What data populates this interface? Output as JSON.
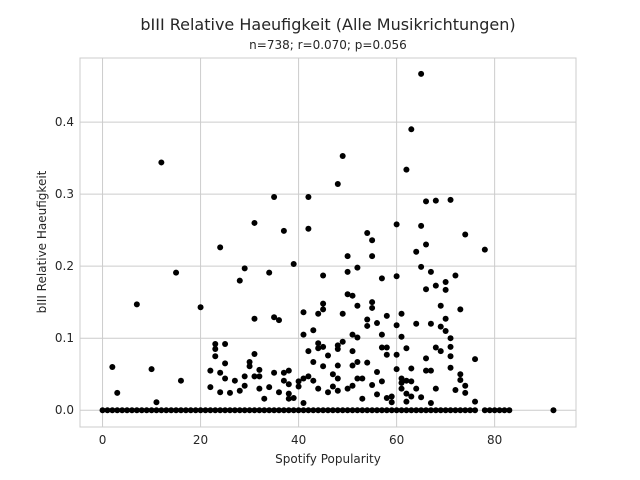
{
  "chart_data": {
    "type": "scatter",
    "title": "bIII Relative Haeufigkeit (Alle Musikrichtungen)",
    "subtitle": "n=738; r=0.070; p=0.056",
    "xlabel": "Spotify Popularity",
    "ylabel": "bIII Relative Haeufigkeit",
    "xlim": [
      -4.6,
      96.6
    ],
    "ylim": [
      -0.0233,
      0.489
    ],
    "xticks": [
      0,
      20,
      40,
      60,
      80
    ],
    "yticks": [
      0.0,
      0.1,
      0.2,
      0.3,
      0.4
    ],
    "xtick_labels": [
      "0",
      "20",
      "40",
      "60",
      "80"
    ],
    "ytick_labels": [
      "0.0",
      "0.1",
      "0.2",
      "0.3",
      "0.4"
    ],
    "grid": true,
    "marker_color": "#000000",
    "points": [
      [
        0,
        0
      ],
      [
        1,
        0
      ],
      [
        2,
        0
      ],
      [
        3,
        0
      ],
      [
        4,
        0
      ],
      [
        5,
        0
      ],
      [
        6,
        0
      ],
      [
        7,
        0
      ],
      [
        8,
        0
      ],
      [
        9,
        0
      ],
      [
        10,
        0
      ],
      [
        11,
        0
      ],
      [
        12,
        0
      ],
      [
        13,
        0
      ],
      [
        14,
        0
      ],
      [
        15,
        0
      ],
      [
        16,
        0
      ],
      [
        17,
        0
      ],
      [
        18,
        0
      ],
      [
        19,
        0
      ],
      [
        20,
        0
      ],
      [
        21,
        0
      ],
      [
        22,
        0
      ],
      [
        23,
        0
      ],
      [
        24,
        0
      ],
      [
        25,
        0
      ],
      [
        26,
        0
      ],
      [
        27,
        0
      ],
      [
        28,
        0
      ],
      [
        29,
        0
      ],
      [
        30,
        0
      ],
      [
        31,
        0
      ],
      [
        32,
        0
      ],
      [
        33,
        0
      ],
      [
        34,
        0
      ],
      [
        35,
        0
      ],
      [
        36,
        0
      ],
      [
        37,
        0
      ],
      [
        38,
        0
      ],
      [
        39,
        0
      ],
      [
        40,
        0
      ],
      [
        41,
        0
      ],
      [
        42,
        0
      ],
      [
        43,
        0
      ],
      [
        44,
        0
      ],
      [
        45,
        0
      ],
      [
        46,
        0
      ],
      [
        47,
        0
      ],
      [
        48,
        0
      ],
      [
        49,
        0
      ],
      [
        50,
        0
      ],
      [
        51,
        0
      ],
      [
        52,
        0
      ],
      [
        53,
        0
      ],
      [
        54,
        0
      ],
      [
        55,
        0
      ],
      [
        56,
        0
      ],
      [
        57,
        0
      ],
      [
        58,
        0
      ],
      [
        59,
        0
      ],
      [
        60,
        0
      ],
      [
        61,
        0
      ],
      [
        62,
        0
      ],
      [
        63,
        0
      ],
      [
        64,
        0
      ],
      [
        65,
        0
      ],
      [
        66,
        0
      ],
      [
        67,
        0
      ],
      [
        68,
        0
      ],
      [
        69,
        0
      ],
      [
        70,
        0
      ],
      [
        71,
        0
      ],
      [
        72,
        0
      ],
      [
        73,
        0
      ],
      [
        74,
        0
      ],
      [
        75,
        0
      ],
      [
        76,
        0
      ],
      [
        78,
        0
      ],
      [
        79,
        0
      ],
      [
        80,
        0
      ],
      [
        81,
        0
      ],
      [
        82,
        0
      ],
      [
        83,
        0
      ],
      [
        92,
        0
      ],
      [
        2,
        0.06
      ],
      [
        3,
        0.024
      ],
      [
        7,
        0.147
      ],
      [
        10,
        0.057
      ],
      [
        11,
        0.011
      ],
      [
        12,
        0.344
      ],
      [
        15,
        0.191
      ],
      [
        16,
        0.041
      ],
      [
        20,
        0.143
      ],
      [
        22,
        0.055
      ],
      [
        22,
        0.032
      ],
      [
        23,
        0.092
      ],
      [
        23,
        0.085
      ],
      [
        23,
        0.075
      ],
      [
        24,
        0.226
      ],
      [
        24,
        0.052
      ],
      [
        24,
        0.025
      ],
      [
        25,
        0.092
      ],
      [
        25,
        0.065
      ],
      [
        25,
        0.044
      ],
      [
        26,
        0.024
      ],
      [
        27,
        0.041
      ],
      [
        28,
        0.18
      ],
      [
        28,
        0.027
      ],
      [
        29,
        0.197
      ],
      [
        29,
        0.047
      ],
      [
        29,
        0.034
      ],
      [
        30,
        0.067
      ],
      [
        30,
        0.061
      ],
      [
        31,
        0.26
      ],
      [
        31,
        0.127
      ],
      [
        31,
        0.078
      ],
      [
        31,
        0.047
      ],
      [
        32,
        0.056
      ],
      [
        32,
        0.047
      ],
      [
        32,
        0.03
      ],
      [
        33,
        0.016
      ],
      [
        34,
        0.191
      ],
      [
        34,
        0.032
      ],
      [
        35,
        0.296
      ],
      [
        35,
        0.129
      ],
      [
        35,
        0.052
      ],
      [
        36,
        0.125
      ],
      [
        36,
        0.025
      ],
      [
        37,
        0.249
      ],
      [
        37,
        0.052
      ],
      [
        37,
        0.041
      ],
      [
        38,
        0.055
      ],
      [
        38,
        0.036
      ],
      [
        38,
        0.023
      ],
      [
        38,
        0.016
      ],
      [
        39,
        0.203
      ],
      [
        39,
        0.017
      ],
      [
        40,
        0.04
      ],
      [
        40,
        0.033
      ],
      [
        41,
        0.136
      ],
      [
        41,
        0.105
      ],
      [
        41,
        0.044
      ],
      [
        41,
        0.01
      ],
      [
        42,
        0.296
      ],
      [
        42,
        0.252
      ],
      [
        42,
        0.082
      ],
      [
        42,
        0.047
      ],
      [
        43,
        0.111
      ],
      [
        43,
        0.067
      ],
      [
        43,
        0.041
      ],
      [
        44,
        0.134
      ],
      [
        44,
        0.093
      ],
      [
        44,
        0.086
      ],
      [
        44,
        0.03
      ],
      [
        45,
        0.187
      ],
      [
        45,
        0.148
      ],
      [
        45,
        0.14
      ],
      [
        45,
        0.088
      ],
      [
        45,
        0.061
      ],
      [
        46,
        0.076
      ],
      [
        46,
        0.025
      ],
      [
        47,
        0.05
      ],
      [
        47,
        0.033
      ],
      [
        48,
        0.314
      ],
      [
        48,
        0.09
      ],
      [
        48,
        0.085
      ],
      [
        48,
        0.062
      ],
      [
        48,
        0.044
      ],
      [
        48,
        0.027
      ],
      [
        49,
        0.353
      ],
      [
        49,
        0.134
      ],
      [
        49,
        0.095
      ],
      [
        50,
        0.214
      ],
      [
        50,
        0.192
      ],
      [
        50,
        0.161
      ],
      [
        50,
        0.03
      ],
      [
        51,
        0.159
      ],
      [
        51,
        0.105
      ],
      [
        51,
        0.082
      ],
      [
        51,
        0.062
      ],
      [
        51,
        0.034
      ],
      [
        52,
        0.198
      ],
      [
        52,
        0.145
      ],
      [
        52,
        0.101
      ],
      [
        52,
        0.067
      ],
      [
        52,
        0.044
      ],
      [
        53,
        0.044
      ],
      [
        53,
        0.016
      ],
      [
        54,
        0.246
      ],
      [
        54,
        0.126
      ],
      [
        54,
        0.117
      ],
      [
        54,
        0.066
      ],
      [
        55,
        0.236
      ],
      [
        55,
        0.214
      ],
      [
        55,
        0.15
      ],
      [
        55,
        0.142
      ],
      [
        55,
        0.035
      ],
      [
        56,
        0.121
      ],
      [
        56,
        0.053
      ],
      [
        56,
        0.022
      ],
      [
        57,
        0.183
      ],
      [
        57,
        0.105
      ],
      [
        57,
        0.087
      ],
      [
        57,
        0.04
      ],
      [
        58,
        0.131
      ],
      [
        58,
        0.087
      ],
      [
        58,
        0.077
      ],
      [
        58,
        0.017
      ],
      [
        59,
        0.019
      ],
      [
        59,
        0.011
      ],
      [
        60,
        0.258
      ],
      [
        60,
        0.186
      ],
      [
        60,
        0.118
      ],
      [
        60,
        0.077
      ],
      [
        60,
        0.057
      ],
      [
        61,
        0.134
      ],
      [
        61,
        0.102
      ],
      [
        61,
        0.044
      ],
      [
        61,
        0.038
      ],
      [
        61,
        0.03
      ],
      [
        62,
        0.334
      ],
      [
        62,
        0.086
      ],
      [
        62,
        0.041
      ],
      [
        62,
        0.023
      ],
      [
        62,
        0.012
      ],
      [
        63,
        0.39
      ],
      [
        63,
        0.058
      ],
      [
        63,
        0.04
      ],
      [
        63,
        0.019
      ],
      [
        64,
        0.22
      ],
      [
        64,
        0.12
      ],
      [
        64,
        0.03
      ],
      [
        65,
        0.467
      ],
      [
        65,
        0.256
      ],
      [
        65,
        0.199
      ],
      [
        65,
        0.018
      ],
      [
        66,
        0.29
      ],
      [
        66,
        0.23
      ],
      [
        66,
        0.168
      ],
      [
        66,
        0.072
      ],
      [
        66,
        0.055
      ],
      [
        67,
        0.192
      ],
      [
        67,
        0.12
      ],
      [
        67,
        0.055
      ],
      [
        67,
        0.01
      ],
      [
        68,
        0.291
      ],
      [
        68,
        0.173
      ],
      [
        68,
        0.087
      ],
      [
        68,
        0.03
      ],
      [
        69,
        0.145
      ],
      [
        69,
        0.116
      ],
      [
        69,
        0.082
      ],
      [
        70,
        0.178
      ],
      [
        70,
        0.167
      ],
      [
        70,
        0.127
      ],
      [
        70,
        0.11
      ],
      [
        71,
        0.292
      ],
      [
        71,
        0.1
      ],
      [
        71,
        0.088
      ],
      [
        71,
        0.075
      ],
      [
        71,
        0.059
      ],
      [
        72,
        0.187
      ],
      [
        72,
        0.028
      ],
      [
        73,
        0.14
      ],
      [
        73,
        0.05
      ],
      [
        73,
        0.042
      ],
      [
        74,
        0.244
      ],
      [
        74,
        0.034
      ],
      [
        74,
        0.024
      ],
      [
        76,
        0.071
      ],
      [
        76,
        0.012
      ],
      [
        78,
        0.223
      ]
    ]
  }
}
